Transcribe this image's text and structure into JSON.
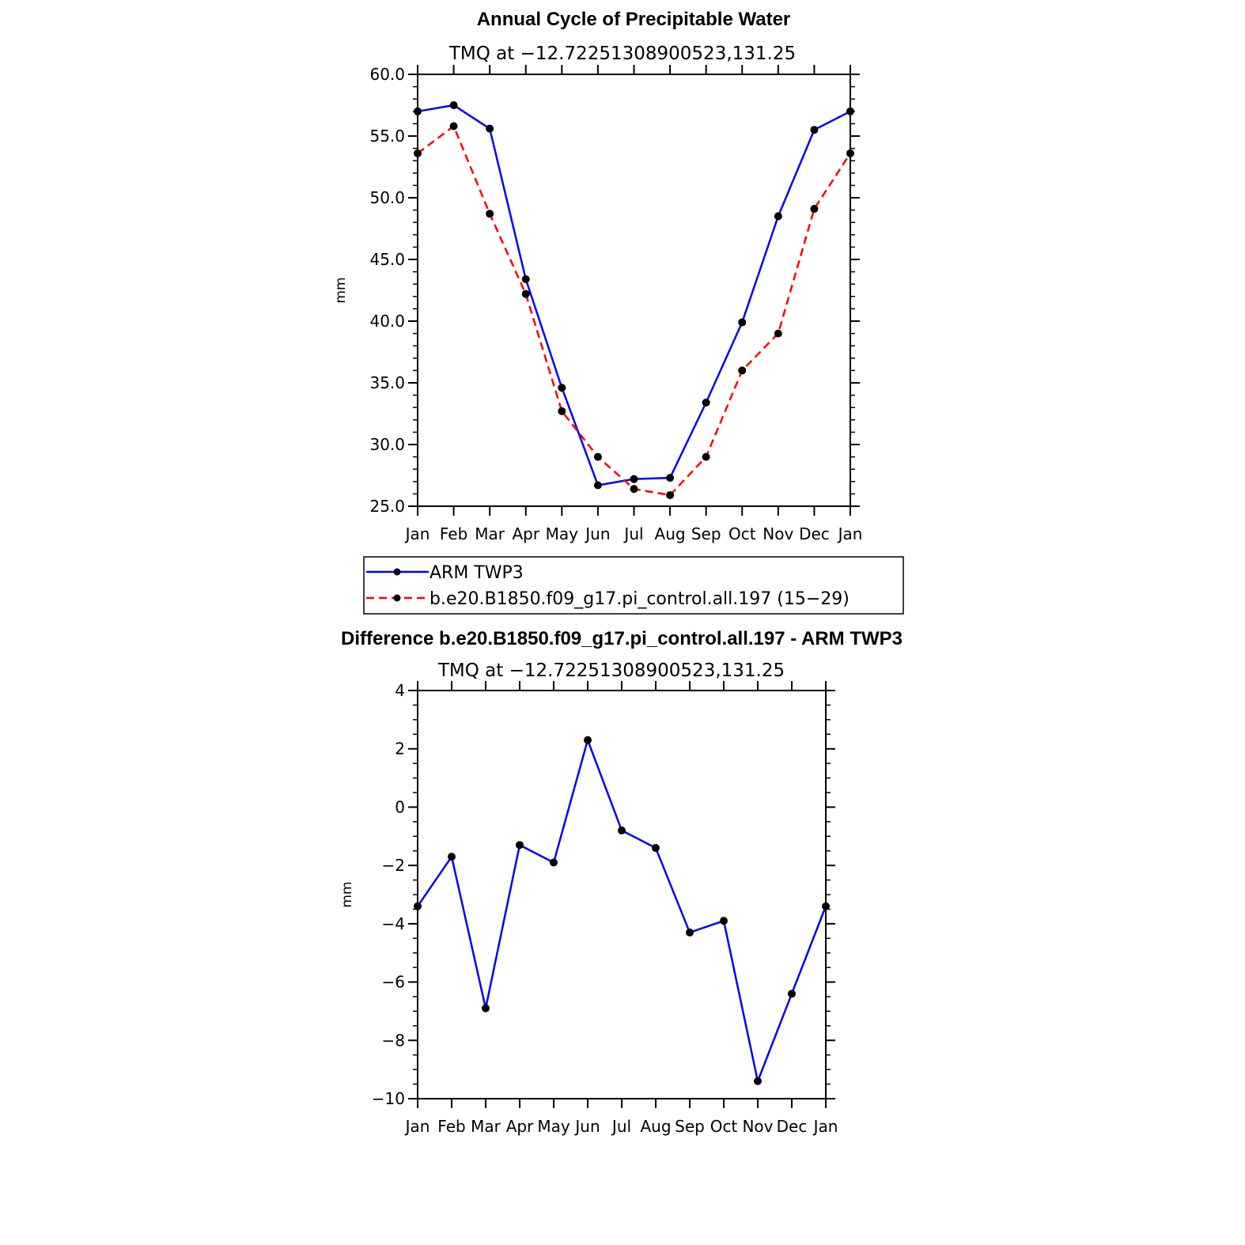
{
  "chart_data": [
    {
      "type": "line",
      "title": "Annual Cycle of Precipitable Water",
      "subtitle": "TMQ at −12.72251308900523,131.25",
      "ylabel": "mm",
      "xlabel": "",
      "ylim": [
        25,
        60
      ],
      "yticks": [
        "25.0",
        "30.0",
        "35.0",
        "40.0",
        "45.0",
        "50.0",
        "55.0",
        "60.0"
      ],
      "categories": [
        "Jan",
        "Feb",
        "Mar",
        "Apr",
        "May",
        "Jun",
        "Jul",
        "Aug",
        "Sep",
        "Oct",
        "Nov",
        "Dec",
        "Jan"
      ],
      "grid": false,
      "legend": "bottom",
      "series": [
        {
          "name": "ARM TWP3",
          "color": "#0000ff",
          "dash": "solid",
          "values": [
            57.0,
            57.5,
            55.6,
            43.4,
            34.6,
            26.7,
            27.2,
            27.3,
            33.4,
            39.9,
            48.5,
            55.5,
            57.0
          ]
        },
        {
          "name": "b.e20.B1850.f09_g17.pi_control.all.197 (15−29)",
          "color": "#ff0000",
          "dash": "dashed",
          "values": [
            53.6,
            55.8,
            48.7,
            42.2,
            32.7,
            29.0,
            26.4,
            25.9,
            29.0,
            36.0,
            39.0,
            49.1,
            53.6
          ]
        }
      ]
    },
    {
      "type": "line",
      "title": "Difference b.e20.B1850.f09_g17.pi_control.all.197 - ARM TWP3",
      "subtitle": "TMQ at −12.72251308900523,131.25",
      "ylabel": "mm",
      "xlabel": "",
      "ylim": [
        -10,
        4
      ],
      "yticks": [
        "−10",
        "−8",
        "−6",
        "−4",
        "−2",
        "0",
        "2",
        "4"
      ],
      "categories": [
        "Jan",
        "Feb",
        "Mar",
        "Apr",
        "May",
        "Jun",
        "Jul",
        "Aug",
        "Sep",
        "Oct",
        "Nov",
        "Dec",
        "Jan"
      ],
      "grid": false,
      "series": [
        {
          "color": "#0000ff",
          "dash": "solid",
          "values": [
            -3.4,
            -1.7,
            -6.9,
            -1.3,
            -1.9,
            2.3,
            -0.8,
            -1.4,
            -4.3,
            -3.9,
            -9.4,
            -6.4,
            -3.4
          ]
        }
      ]
    }
  ]
}
